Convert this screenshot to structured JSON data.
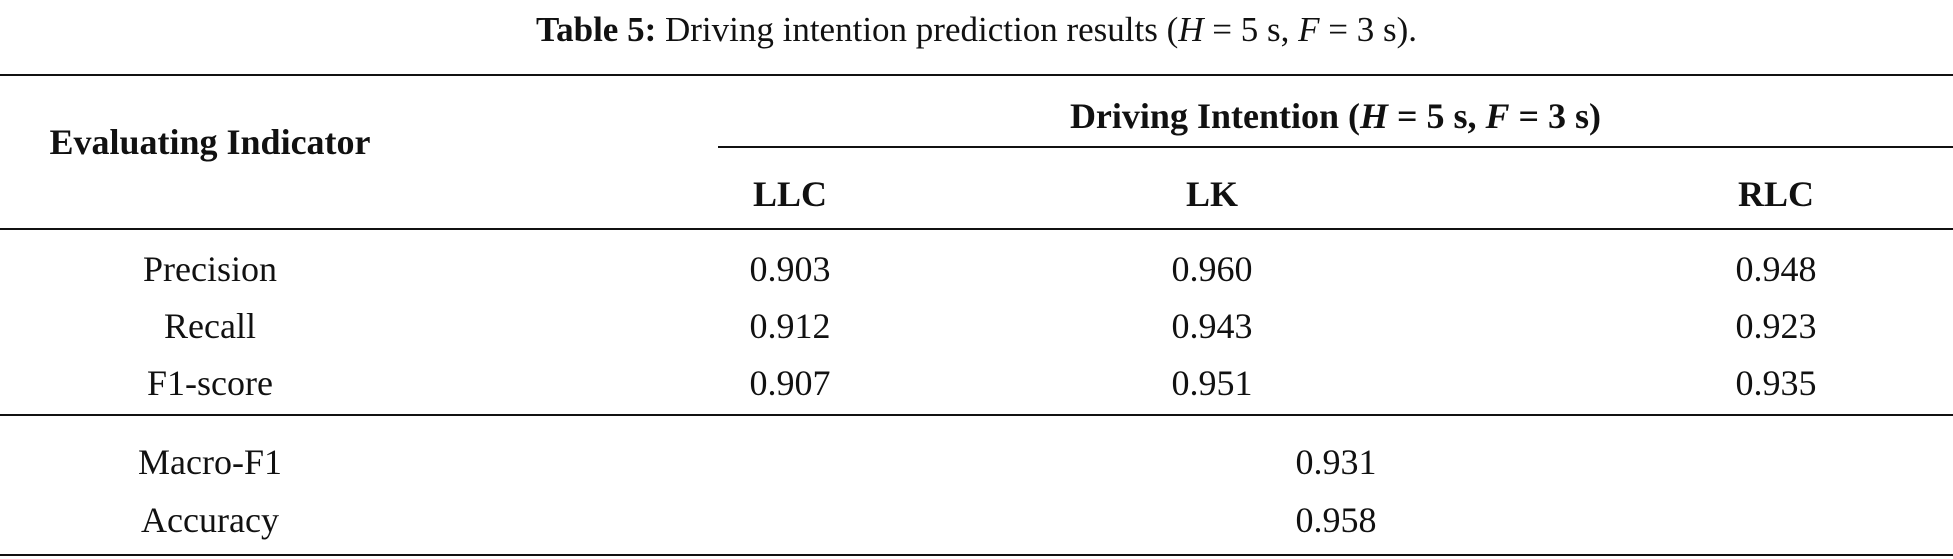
{
  "caption": {
    "label": "Table 5:",
    "text_before": " Driving intention prediction results (",
    "h_var": "H",
    "h_value": " = 5 s, ",
    "f_var": "F",
    "f_value": " = 3 s)."
  },
  "table": {
    "row_header": "Evaluating Indicator",
    "group_header": {
      "text_before": "Driving Intention (",
      "h_var": "H",
      "h_value": " = 5 s, ",
      "f_var": "F",
      "f_value": " = 3 s)"
    },
    "columns": [
      "LLC",
      "LK",
      "RLC"
    ],
    "rows": [
      {
        "label": "Precision",
        "values": [
          "0.903",
          "0.960",
          "0.948"
        ]
      },
      {
        "label": "Recall",
        "values": [
          "0.912",
          "0.943",
          "0.923"
        ]
      },
      {
        "label": "F1-score",
        "values": [
          "0.907",
          "0.951",
          "0.935"
        ]
      }
    ],
    "summary_rows": [
      {
        "label": "Macro-F1",
        "value": "0.931"
      },
      {
        "label": "Accuracy",
        "value": "0.958"
      }
    ]
  }
}
